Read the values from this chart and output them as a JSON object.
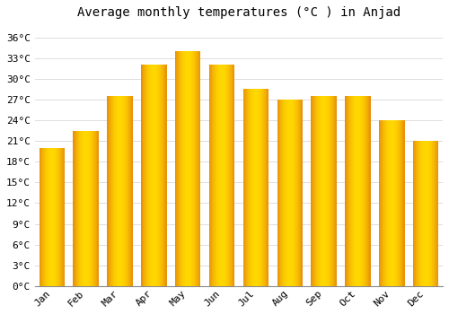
{
  "months": [
    "Jan",
    "Feb",
    "Mar",
    "Apr",
    "May",
    "Jun",
    "Jul",
    "Aug",
    "Sep",
    "Oct",
    "Nov",
    "Dec"
  ],
  "temperatures": [
    20.0,
    22.5,
    27.5,
    32.0,
    34.0,
    32.0,
    28.5,
    27.0,
    27.5,
    27.5,
    24.0,
    21.0
  ],
  "bar_color_center": "#FFD700",
  "bar_color_edge": "#E8900A",
  "title": "Average monthly temperatures (°C ) in Anjad",
  "ylim": [
    0,
    38
  ],
  "yticks": [
    0,
    3,
    6,
    9,
    12,
    15,
    18,
    21,
    24,
    27,
    30,
    33,
    36
  ],
  "ytick_labels": [
    "0°C",
    "3°C",
    "6°C",
    "9°C",
    "12°C",
    "15°C",
    "18°C",
    "21°C",
    "24°C",
    "27°C",
    "30°C",
    "33°C",
    "36°C"
  ],
  "background_color": "#FFFFFF",
  "grid_color": "#DDDDDD",
  "title_fontsize": 10,
  "tick_fontsize": 8,
  "font_family": "monospace",
  "bar_gap": 0.08
}
